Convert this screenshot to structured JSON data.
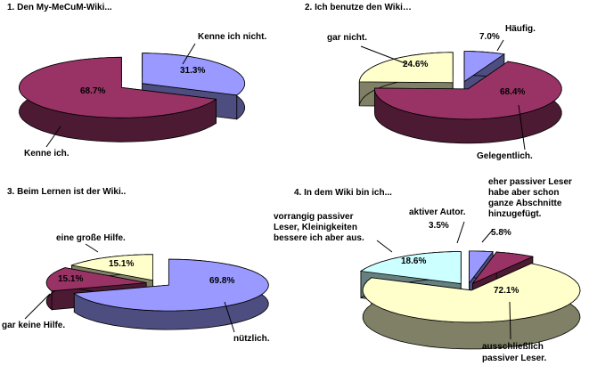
{
  "chart_data": [
    {
      "type": "pie",
      "title": "1. Den My-MeCuM-Wiki...",
      "three_d": true,
      "slices": [
        {
          "label": "Kenne ich nicht.",
          "value": 31.3,
          "value_label": "31.3%",
          "color": "#9999ff"
        },
        {
          "label": "Kenne ich.",
          "value": 68.7,
          "value_label": "68.7%",
          "color": "#993366"
        }
      ]
    },
    {
      "type": "pie",
      "title": "2. Ich benutze den Wiki…",
      "three_d": true,
      "slices": [
        {
          "label": "Häufig.",
          "value": 7.0,
          "value_label": "7.0%",
          "color": "#9999ff"
        },
        {
          "label": "Gelegentlich.",
          "value": 68.4,
          "value_label": "68.4%",
          "color": "#993366"
        },
        {
          "label": "gar nicht.",
          "value": 24.6,
          "value_label": "24.6%",
          "color": "#ffffcc"
        }
      ]
    },
    {
      "type": "pie",
      "title": "3. Beim Lernen ist der Wiki..",
      "three_d": true,
      "slices": [
        {
          "label": "nützlich.",
          "value": 69.8,
          "value_label": "69.8%",
          "color": "#9999ff"
        },
        {
          "label": "gar keine Hilfe.",
          "value": 15.1,
          "value_label": "15.1%",
          "color": "#993366"
        },
        {
          "label": "eine große Hilfe.",
          "value": 15.1,
          "value_label": "15.1%",
          "color": "#ffffcc"
        }
      ]
    },
    {
      "type": "pie",
      "title": "4. In dem Wiki bin ich...",
      "three_d": true,
      "slices": [
        {
          "label": "aktiver Autor.",
          "value": 3.5,
          "value_label": "3.5%",
          "color": "#9999ff"
        },
        {
          "label": "eher passiver Leser habe aber schon ganze Abschnitte hinzugefügt.",
          "label_lines": [
            "eher passiver Leser",
            "habe aber schon",
            "ganze Abschnitte",
            "hinzugefügt."
          ],
          "value": 5.8,
          "value_label": "5.8%",
          "color": "#993366"
        },
        {
          "label": "ausschließlich passiver Leser.",
          "label_lines": [
            "ausschließlich",
            "passiver Leser."
          ],
          "value": 72.1,
          "value_label": "72.1%",
          "color": "#ffffcc"
        },
        {
          "label": "vorrangig passiver Leser, Kleinigkeiten bessere ich aber aus.",
          "label_lines": [
            "vorrangig passiver",
            "Leser, Kleinigkeiten",
            "bessere ich aber aus."
          ],
          "value": 18.6,
          "value_label": "18.6%",
          "color": "#ccffff"
        }
      ]
    }
  ]
}
